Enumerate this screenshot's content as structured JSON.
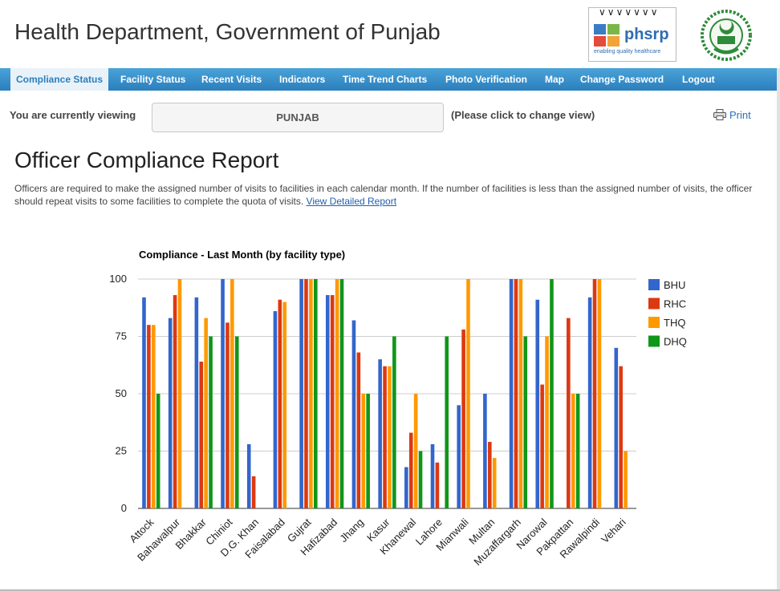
{
  "header": {
    "title": "Health Department, Government of Punjab",
    "logo_text": "phsrp",
    "logo_tagline": "enabling quality healthcare"
  },
  "nav": {
    "items": [
      {
        "label": "Compliance Status",
        "active": true
      },
      {
        "label": "Facility Status"
      },
      {
        "label": "Recent Visits"
      },
      {
        "label": "Indicators"
      },
      {
        "label": "Time Trend Charts"
      },
      {
        "label": "Photo Verification"
      },
      {
        "label": "Map"
      },
      {
        "label": "Change Password"
      },
      {
        "label": "Logout"
      }
    ]
  },
  "viewing": {
    "label": "You are currently viewing",
    "value": "PUNJAB",
    "hint": "(Please click to change view)"
  },
  "print_label": "Print",
  "report": {
    "title": "Officer Compliance Report",
    "description": "Officers are required to make the assigned number of visits to facilities in each calendar month. If the number of facilities is less than the assigned number of visits, the officer should repeat visits to some facilities to complete the quota of visits.",
    "link_text": "View Detailed Report"
  },
  "chart_data": {
    "type": "bar",
    "title": "Compliance - Last Month (by facility type)",
    "xlabel": "",
    "ylabel": "",
    "ylim": [
      0,
      100
    ],
    "yticks": [
      0,
      25,
      50,
      75,
      100
    ],
    "grid": true,
    "legend_position": "right",
    "categories": [
      "Attock",
      "Bahawalpur",
      "Bhakkar",
      "Chiniot",
      "D.G. Khan",
      "Faisalabad",
      "Gujrat",
      "Hafizabad",
      "Jhang",
      "Kasur",
      "Khanewal",
      "Lahore",
      "Mianwali",
      "Multan",
      "Muzaffargarh",
      "Narowal",
      "Pakpattan",
      "Rawalpindi",
      "Vehari"
    ],
    "series": [
      {
        "name": "BHU",
        "color": "#3366cc",
        "values": [
          92,
          83,
          92,
          100,
          28,
          86,
          100,
          93,
          82,
          65,
          18,
          28,
          45,
          50,
          100,
          91,
          0,
          92,
          70
        ]
      },
      {
        "name": "RHC",
        "color": "#dc3912",
        "values": [
          80,
          93,
          64,
          81,
          14,
          91,
          100,
          93,
          68,
          62,
          33,
          20,
          78,
          29,
          100,
          54,
          83,
          100,
          62
        ]
      },
      {
        "name": "THQ",
        "color": "#ff9900",
        "values": [
          80,
          100,
          83,
          100,
          0,
          90,
          100,
          100,
          50,
          62,
          50,
          0,
          100,
          22,
          100,
          75,
          50,
          100,
          25
        ]
      },
      {
        "name": "DHQ",
        "color": "#109618",
        "values": [
          50,
          0,
          75,
          75,
          0,
          0,
          100,
          100,
          50,
          75,
          25,
          75,
          0,
          0,
          75,
          100,
          50,
          0,
          0
        ]
      }
    ]
  }
}
